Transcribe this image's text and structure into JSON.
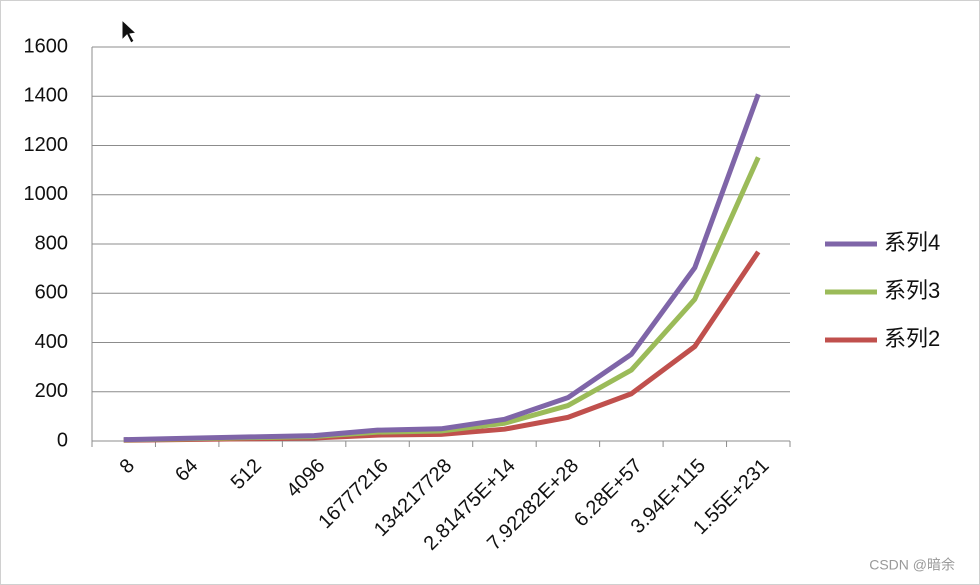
{
  "chart_data": {
    "type": "line",
    "categories": [
      "8",
      "64",
      "512",
      "4096",
      "16777216",
      "134217728",
      "2.81475E+14",
      "7.92282E+28",
      "6.28E+57",
      "3.94E+115",
      "1.55E+231"
    ],
    "series": [
      {
        "name": "系列4",
        "color": "#7f65a8",
        "values": [
          5.5,
          11,
          16.5,
          22,
          44,
          49.5,
          88,
          176,
          352,
          704,
          1408
        ]
      },
      {
        "name": "系列3",
        "color": "#9bbb59",
        "values": [
          4.5,
          9,
          13.5,
          18,
          36,
          40.5,
          72,
          144,
          288,
          576,
          1152
        ]
      },
      {
        "name": "系列2",
        "color": "#c0504d",
        "values": [
          3,
          6,
          9,
          12,
          24,
          27,
          48,
          96,
          192,
          384,
          768
        ]
      }
    ],
    "ylim": [
      0,
      1600
    ],
    "yticks": [
      0,
      200,
      400,
      600,
      800,
      1000,
      1200,
      1400,
      1600
    ],
    "grid": true,
    "legend": "right",
    "watermark": "CSDN @暗余"
  }
}
